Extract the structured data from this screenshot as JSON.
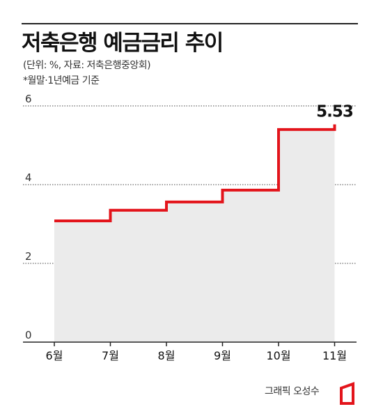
{
  "header": {
    "title": "저축은행 예금금리 추이",
    "source": "(단위: %, 자료: 저축은행중앙회)",
    "basis": "*월말·1년예금 기준"
  },
  "credit": "그래픽 오성수",
  "colors": {
    "line": "#e3141b",
    "area": "#ebebeb",
    "grid": "#444444",
    "text": "#111111"
  },
  "chart_data": {
    "type": "line",
    "step": true,
    "categories": [
      "6월",
      "7월",
      "8월",
      "9월",
      "10월",
      "11월"
    ],
    "values": [
      3.08,
      3.35,
      3.56,
      3.86,
      5.4,
      5.53
    ],
    "y_ticks": [
      0,
      2,
      4,
      6
    ],
    "ylim": [
      0,
      6
    ],
    "grid": true,
    "annotation": "5.53"
  }
}
